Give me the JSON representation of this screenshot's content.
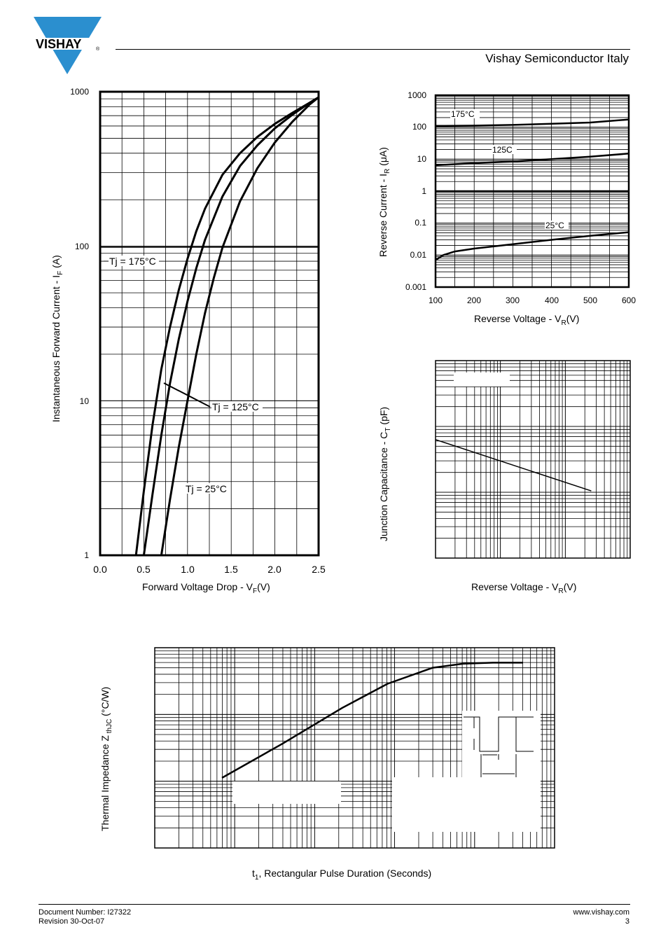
{
  "header": {
    "logo_text": "VISHAY",
    "logo_registered": "®",
    "company": "Vishay Semiconductor Italy"
  },
  "footer": {
    "doc_number": "Document Number: I27322",
    "revision": "Revision 30-Oct-07",
    "website": "www.vishay.com",
    "page_number": "3"
  },
  "chart_data": [
    {
      "type": "line",
      "yscale": "log",
      "xlabel": "Forward Voltage Drop - V",
      "xlabel_sub": "F",
      "xlabel_unit": "(V)",
      "ylabel": "Instantaneous Forward Current - I",
      "ylabel_sub": "F",
      "ylabel_unit": "(A)",
      "xlim": [
        0,
        2.5
      ],
      "ylim": [
        1,
        1000
      ],
      "x_ticks": [
        "0.0",
        "0.5",
        "1.0",
        "1.5",
        "2.0",
        "2.5"
      ],
      "y_ticks": [
        "1",
        "10",
        "100",
        "1000"
      ],
      "annotations": [
        "Tj = 175°C",
        "Tj = 125°C",
        "Tj = 25°C"
      ],
      "series": [
        {
          "x": [
            0.41,
            0.5,
            0.6,
            0.7,
            0.8,
            0.9,
            1.0,
            1.1,
            1.2,
            1.4,
            1.6,
            1.8,
            2.0,
            2.2,
            2.4,
            2.5
          ],
          "y": [
            1,
            2.6,
            7,
            16,
            30,
            52,
            83,
            125,
            175,
            290,
            400,
            510,
            620,
            730,
            850,
            920
          ]
        },
        {
          "x": [
            0.5,
            0.6,
            0.7,
            0.8,
            0.9,
            1.0,
            1.1,
            1.2,
            1.4,
            1.6,
            1.8,
            2.0,
            2.2,
            2.4,
            2.5
          ],
          "y": [
            1,
            2.5,
            6,
            13,
            25,
            44,
            72,
            110,
            210,
            330,
            450,
            580,
            710,
            850,
            920
          ]
        },
        {
          "x": [
            0.7,
            0.8,
            0.9,
            1.0,
            1.1,
            1.2,
            1.3,
            1.4,
            1.6,
            1.8,
            2.0,
            2.2,
            2.4,
            2.5
          ],
          "y": [
            1,
            2.3,
            5,
            10,
            20,
            37,
            62,
            98,
            195,
            320,
            470,
            640,
            830,
            920
          ]
        }
      ]
    },
    {
      "type": "line",
      "yscale": "log",
      "xlabel": "Reverse Voltage - V",
      "xlabel_sub": "R",
      "xlabel_unit": "(V)",
      "ylabel": "Reverse Current - I",
      "ylabel_sub": "R",
      "ylabel_unit": "(μA)",
      "xlim": [
        100,
        600
      ],
      "ylim": [
        0.001,
        1000
      ],
      "x_ticks": [
        "100",
        "200",
        "300",
        "400",
        "500",
        "600"
      ],
      "y_ticks": [
        "0.001",
        "0.01",
        "0.1",
        "1",
        "10",
        "100",
        "1000"
      ],
      "series": [
        {
          "name": "175°C",
          "x": [
            100,
            200,
            300,
            400,
            500,
            600
          ],
          "y": [
            110,
            112,
            118,
            128,
            140,
            175
          ]
        },
        {
          "name": "125C",
          "x": [
            100,
            200,
            300,
            400,
            500,
            600
          ],
          "y": [
            6.5,
            7.5,
            8.5,
            10,
            12,
            15
          ]
        },
        {
          "name": "25°C",
          "x": [
            100,
            120,
            150,
            200,
            300,
            400,
            500,
            600
          ],
          "y": [
            0.007,
            0.01,
            0.013,
            0.016,
            0.022,
            0.03,
            0.04,
            0.052
          ]
        }
      ]
    },
    {
      "type": "line",
      "xscale": "log",
      "yscale": "log",
      "xlabel": "Reverse Voltage - V",
      "xlabel_sub": "R",
      "xlabel_unit": "(V)",
      "ylabel": "Junction Capacitance - C",
      "ylabel_sub": "T",
      "ylabel_unit": "(pF)",
      "series": [
        {
          "x": [
            0.0,
            1.0
          ],
          "y": [
            0.6,
            0.34
          ]
        }
      ]
    },
    {
      "type": "line",
      "xscale": "log",
      "yscale": "log",
      "xlabel_prefix": "t",
      "xlabel_sub": "1",
      "xlabel": ", Rectangular Pulse Duration (Seconds)",
      "ylabel": "Thermal Impedance Z",
      "ylabel_sub": "thJC",
      "ylabel_unit": "(°C/W)",
      "series": [
        {
          "x": [
            0.0,
            0.2,
            0.4,
            0.55,
            0.7,
            0.8,
            0.9,
            1.0
          ],
          "y": [
            0.35,
            0.52,
            0.7,
            0.82,
            0.9,
            0.92,
            0.925,
            0.925
          ]
        }
      ]
    }
  ]
}
